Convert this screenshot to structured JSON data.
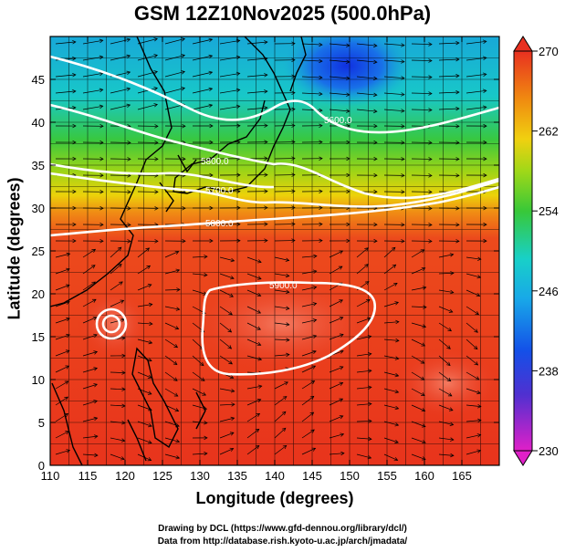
{
  "title": "GSM 12Z10Nov2025 (500.0hPa)",
  "axes": {
    "xlabel": "Longitude (degrees)",
    "ylabel": "Latitude  (degrees)",
    "xlim": [
      110,
      170
    ],
    "ylim": [
      0,
      50
    ],
    "xticks": [
      110,
      115,
      120,
      125,
      130,
      135,
      140,
      145,
      150,
      155,
      160,
      165
    ],
    "yticks": [
      0,
      5,
      10,
      15,
      20,
      25,
      30,
      35,
      40,
      45
    ]
  },
  "colorbar": {
    "range": [
      230,
      270
    ],
    "tick_labels": [
      "270",
      "262",
      "254",
      "246",
      "238",
      "230"
    ],
    "tick_values": [
      270,
      262,
      254,
      246,
      238,
      230
    ]
  },
  "contours": [
    {
      "label": "5600.0"
    },
    {
      "label": "5800.0"
    },
    {
      "label": "5700.0"
    },
    {
      "label": "5800.0"
    },
    {
      "label": "5900.0"
    }
  ],
  "credits": {
    "line1": "Drawing by DCL (https://www.gfd-dennou.org/library/dcl/)",
    "line2": "Data from http://database.rish.kyoto-u.ac.jp/arch/jmadata/"
  },
  "colors": {
    "warm": "#e8341c",
    "orange": "#f07a10",
    "yellow": "#ecd20a",
    "green": "#2ec830",
    "cyan": "#18c8e0",
    "blue": "#1460e8",
    "magenta": "#e020c8"
  }
}
